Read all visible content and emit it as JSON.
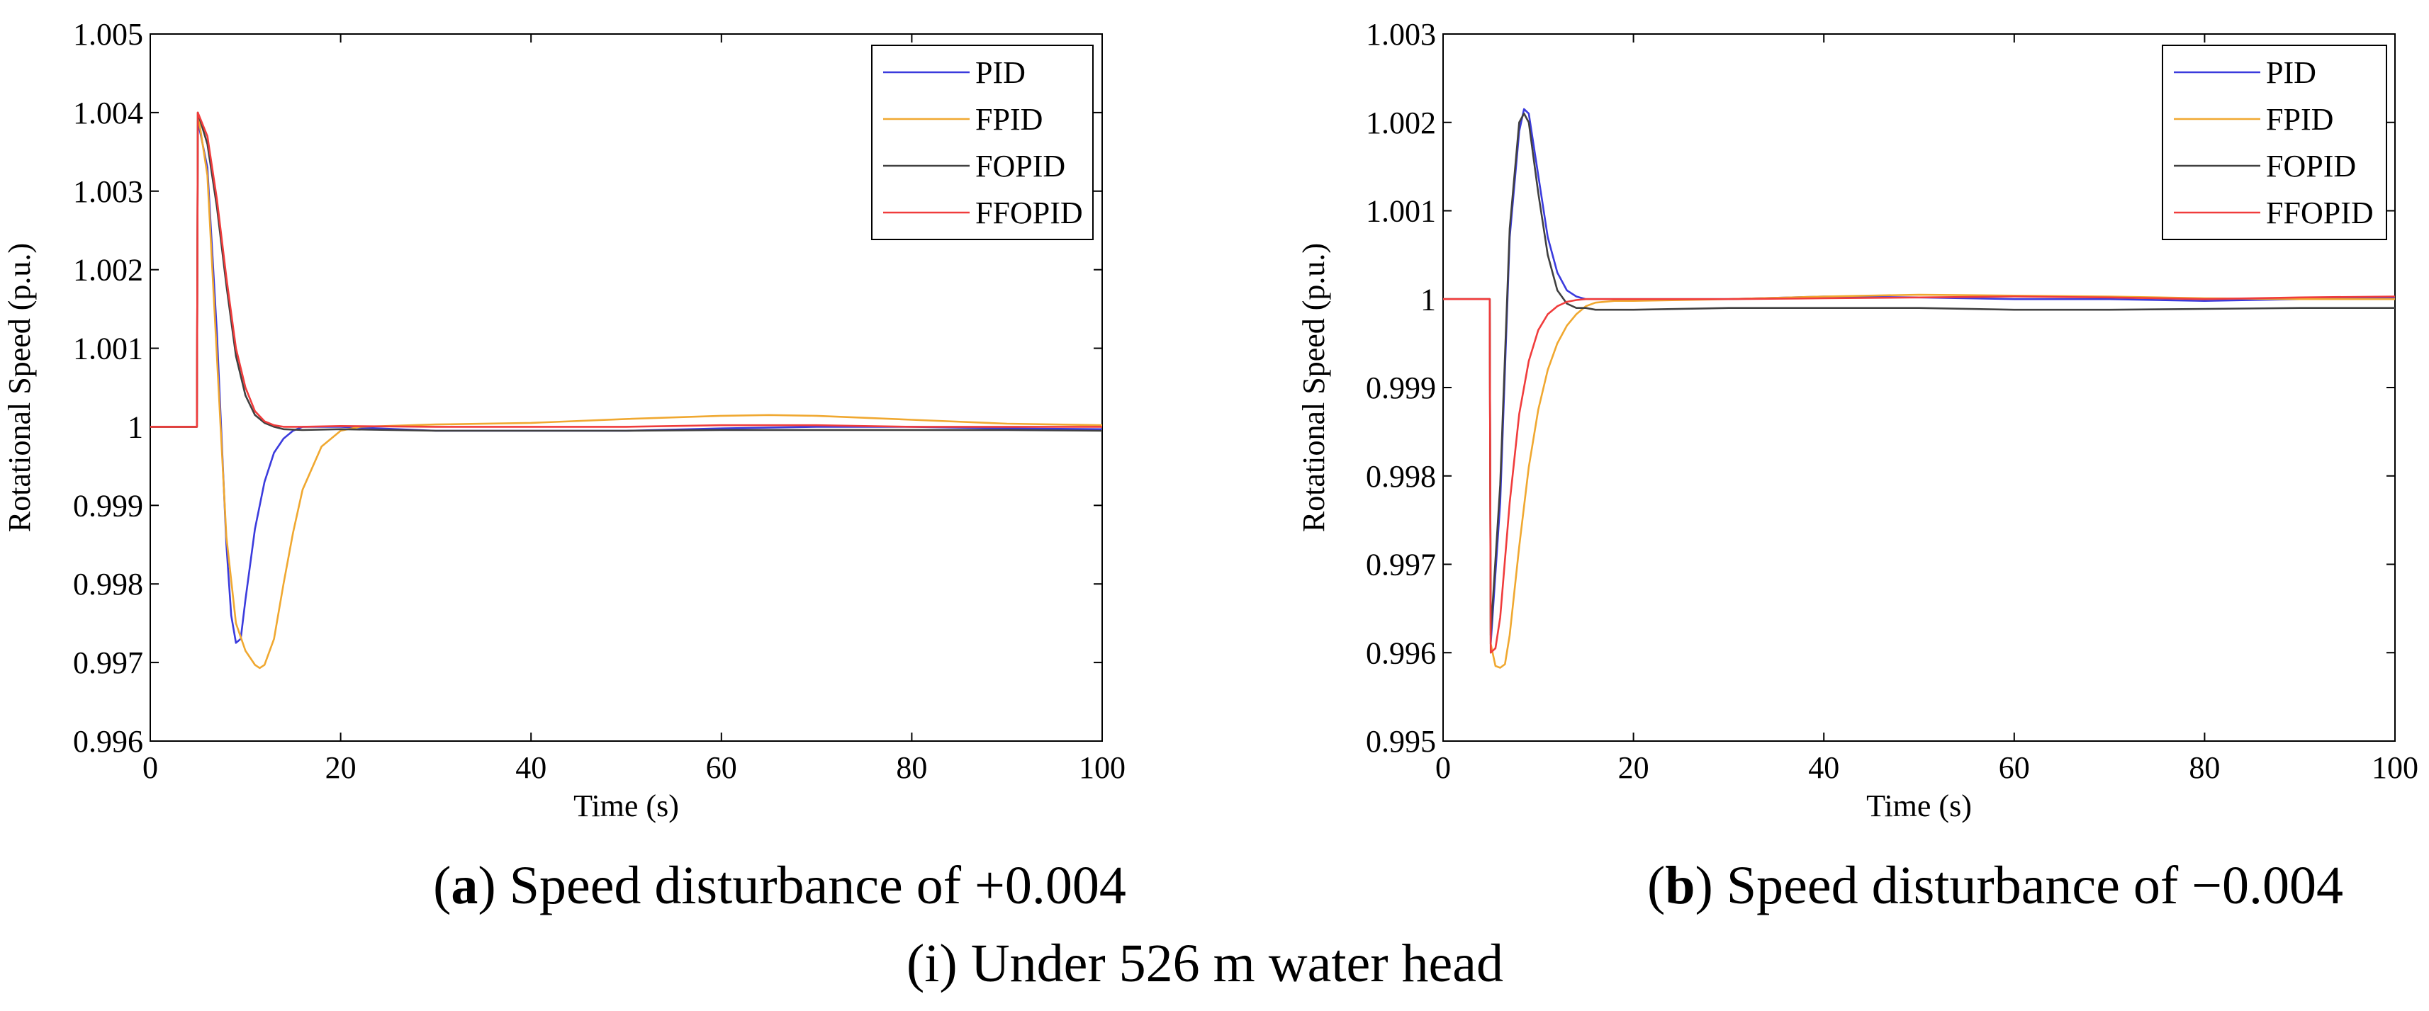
{
  "figure_caption": "(i) Under 526 m water head",
  "colors": {
    "PID": "#3b3bdd",
    "FPID": "#f0a830",
    "FOPID": "#404040",
    "FFOPID": "#f03c3c"
  },
  "chart_data": [
    {
      "type": "line",
      "caption_bold": "a",
      "caption_rest": ") Speed disturbance of +0.004",
      "xlabel": "Time (s)",
      "ylabel": "Rotational Speed (p.u.)",
      "xlim": [
        0,
        100
      ],
      "ylim": [
        0.996,
        1.005
      ],
      "xticks": [
        0,
        20,
        40,
        60,
        80,
        100
      ],
      "xtick_labels": [
        "0",
        "20",
        "40",
        "60",
        "80",
        "100"
      ],
      "yticks": [
        0.996,
        0.997,
        0.998,
        0.999,
        1.0,
        1.001,
        1.002,
        1.003,
        1.004,
        1.005
      ],
      "ytick_labels": [
        "0.996",
        "0.997",
        "0.998",
        "0.999",
        "1",
        "1.001",
        "1.002",
        "1.003",
        "1.004",
        "1.005"
      ],
      "grid": false,
      "legend_position": "top-right",
      "series": [
        {
          "name": "PID",
          "x": [
            0,
            4.9,
            5,
            6,
            7,
            8,
            8.5,
            9,
            9.5,
            10,
            11,
            12,
            13,
            14,
            15,
            16,
            18,
            20,
            30,
            40,
            50,
            60,
            70,
            80,
            90,
            100
          ],
          "y": [
            1.0,
            1.0,
            1.0039,
            1.0033,
            1.0012,
            0.9985,
            0.9976,
            0.99725,
            0.9973,
            0.9978,
            0.9987,
            0.9993,
            0.99967,
            0.99985,
            0.99995,
            1.0,
            1.0,
            1.0,
            0.99995,
            0.99995,
            0.99995,
            0.99998,
            1.0,
            1.0,
            0.99998,
            0.99997
          ]
        },
        {
          "name": "FPID",
          "x": [
            0,
            4.9,
            5,
            6,
            7,
            8,
            9,
            10,
            11,
            11.5,
            12,
            13,
            14,
            15,
            16,
            18,
            20,
            22,
            30,
            40,
            50,
            60,
            65,
            70,
            80,
            90,
            100
          ],
          "y": [
            1.0,
            1.0,
            1.004,
            1.0032,
            1.0009,
            0.9986,
            0.9975,
            0.99715,
            0.99697,
            0.99693,
            0.99697,
            0.9973,
            0.998,
            0.99865,
            0.9992,
            0.99975,
            0.99995,
            1.0,
            1.00003,
            1.00005,
            1.0001,
            1.00014,
            1.00015,
            1.00014,
            1.00009,
            1.00004,
            1.00002
          ]
        },
        {
          "name": "FOPID",
          "x": [
            0,
            4.9,
            5,
            6,
            7,
            8,
            9,
            10,
            11,
            12,
            13,
            14,
            16,
            20,
            30,
            40,
            50,
            60,
            70,
            80,
            90,
            100
          ],
          "y": [
            1.0,
            1.0,
            1.004,
            1.0036,
            1.0028,
            1.0018,
            1.0009,
            1.0004,
            1.00015,
            1.00005,
            1.0,
            0.99997,
            0.99996,
            0.99997,
            0.99995,
            0.99995,
            0.99995,
            0.99996,
            0.99996,
            0.99996,
            0.99996,
            0.99995
          ]
        },
        {
          "name": "FFOPID",
          "x": [
            0,
            4.9,
            5,
            6,
            7,
            8,
            9,
            10,
            11,
            12,
            13,
            14,
            16,
            20,
            30,
            40,
            50,
            60,
            70,
            80,
            90,
            100
          ],
          "y": [
            1.0,
            1.0,
            1.004,
            1.0037,
            1.0029,
            1.0019,
            1.001,
            1.0005,
            1.0002,
            1.00007,
            1.00002,
            1.0,
            1.0,
            1.00001,
            1.0,
            1.0,
            1.0,
            1.00002,
            1.00002,
            1.0,
            1.0,
            1.0
          ]
        }
      ]
    },
    {
      "type": "line",
      "caption_bold": "b",
      "caption_rest": ") Speed disturbance of −0.004",
      "xlabel": "Time (s)",
      "ylabel": "Rotational Speed (p.u.)",
      "xlim": [
        0,
        100
      ],
      "ylim": [
        0.995,
        1.003
      ],
      "xticks": [
        0,
        20,
        40,
        60,
        80,
        100
      ],
      "xtick_labels": [
        "0",
        "20",
        "40",
        "60",
        "80",
        "100"
      ],
      "yticks": [
        0.995,
        0.996,
        0.997,
        0.998,
        0.999,
        1.0,
        1.001,
        1.002,
        1.003
      ],
      "ytick_labels": [
        "0.995",
        "0.996",
        "0.997",
        "0.998",
        "0.999",
        "1",
        "1.001",
        "1.002",
        "1.003"
      ],
      "grid": false,
      "legend_position": "top-right",
      "series": [
        {
          "name": "PID",
          "x": [
            0,
            4.9,
            5,
            6,
            7,
            8,
            8.5,
            9,
            10,
            11,
            12,
            13,
            14,
            15,
            16,
            20,
            30,
            40,
            50,
            60,
            70,
            80,
            90,
            100
          ],
          "y": [
            1.0,
            1.0,
            0.9961,
            0.9977,
            1.0007,
            1.0019,
            1.00215,
            1.0021,
            1.0014,
            1.0007,
            1.0003,
            1.0001,
            1.00003,
            1.0,
            1.0,
            1.0,
            1.0,
            1.00003,
            1.00002,
            1.0,
            1.0,
            0.99998,
            1.0,
            1.00002
          ]
        },
        {
          "name": "FPID",
          "x": [
            0,
            4.9,
            5,
            5.5,
            6,
            6.5,
            7,
            8,
            9,
            10,
            11,
            12,
            13,
            14,
            15,
            16,
            18,
            20,
            30,
            40,
            50,
            60,
            70,
            80,
            90,
            100
          ],
          "y": [
            1.0,
            1.0,
            0.9961,
            0.99585,
            0.99583,
            0.99587,
            0.9962,
            0.9972,
            0.9981,
            0.99875,
            0.9992,
            0.9995,
            0.9997,
            0.99983,
            0.99992,
            0.99996,
            0.99998,
            0.99998,
            1.0,
            1.00003,
            1.00005,
            1.00004,
            1.00003,
            1.00001,
            1.0,
            1.0
          ]
        },
        {
          "name": "FOPID",
          "x": [
            0,
            4.9,
            5,
            6,
            7,
            8,
            8.5,
            9,
            10,
            11,
            12,
            13,
            14,
            15,
            16,
            20,
            30,
            40,
            50,
            60,
            70,
            80,
            90,
            100
          ],
          "y": [
            1.0,
            1.0,
            0.9962,
            0.9979,
            1.0008,
            1.002,
            1.0021,
            1.002,
            1.0012,
            1.0005,
            1.0001,
            0.99995,
            0.9999,
            0.9999,
            0.99988,
            0.99988,
            0.9999,
            0.9999,
            0.9999,
            0.99988,
            0.99988,
            0.99989,
            0.9999,
            0.9999
          ]
        },
        {
          "name": "FFOPID",
          "x": [
            0,
            4.9,
            5,
            5.5,
            6,
            7,
            8,
            9,
            10,
            11,
            12,
            13,
            14,
            15,
            16,
            20,
            30,
            40,
            50,
            60,
            70,
            80,
            90,
            100
          ],
          "y": [
            1.0,
            1.0,
            0.996,
            0.99605,
            0.9964,
            0.9977,
            0.9987,
            0.9993,
            0.99965,
            0.99983,
            0.99992,
            0.99997,
            0.99999,
            1.0,
            1.0,
            1.0,
            1.0,
            1.00001,
            1.00002,
            1.00003,
            1.00002,
            1.0,
            1.00002,
            1.00003
          ]
        }
      ]
    }
  ]
}
